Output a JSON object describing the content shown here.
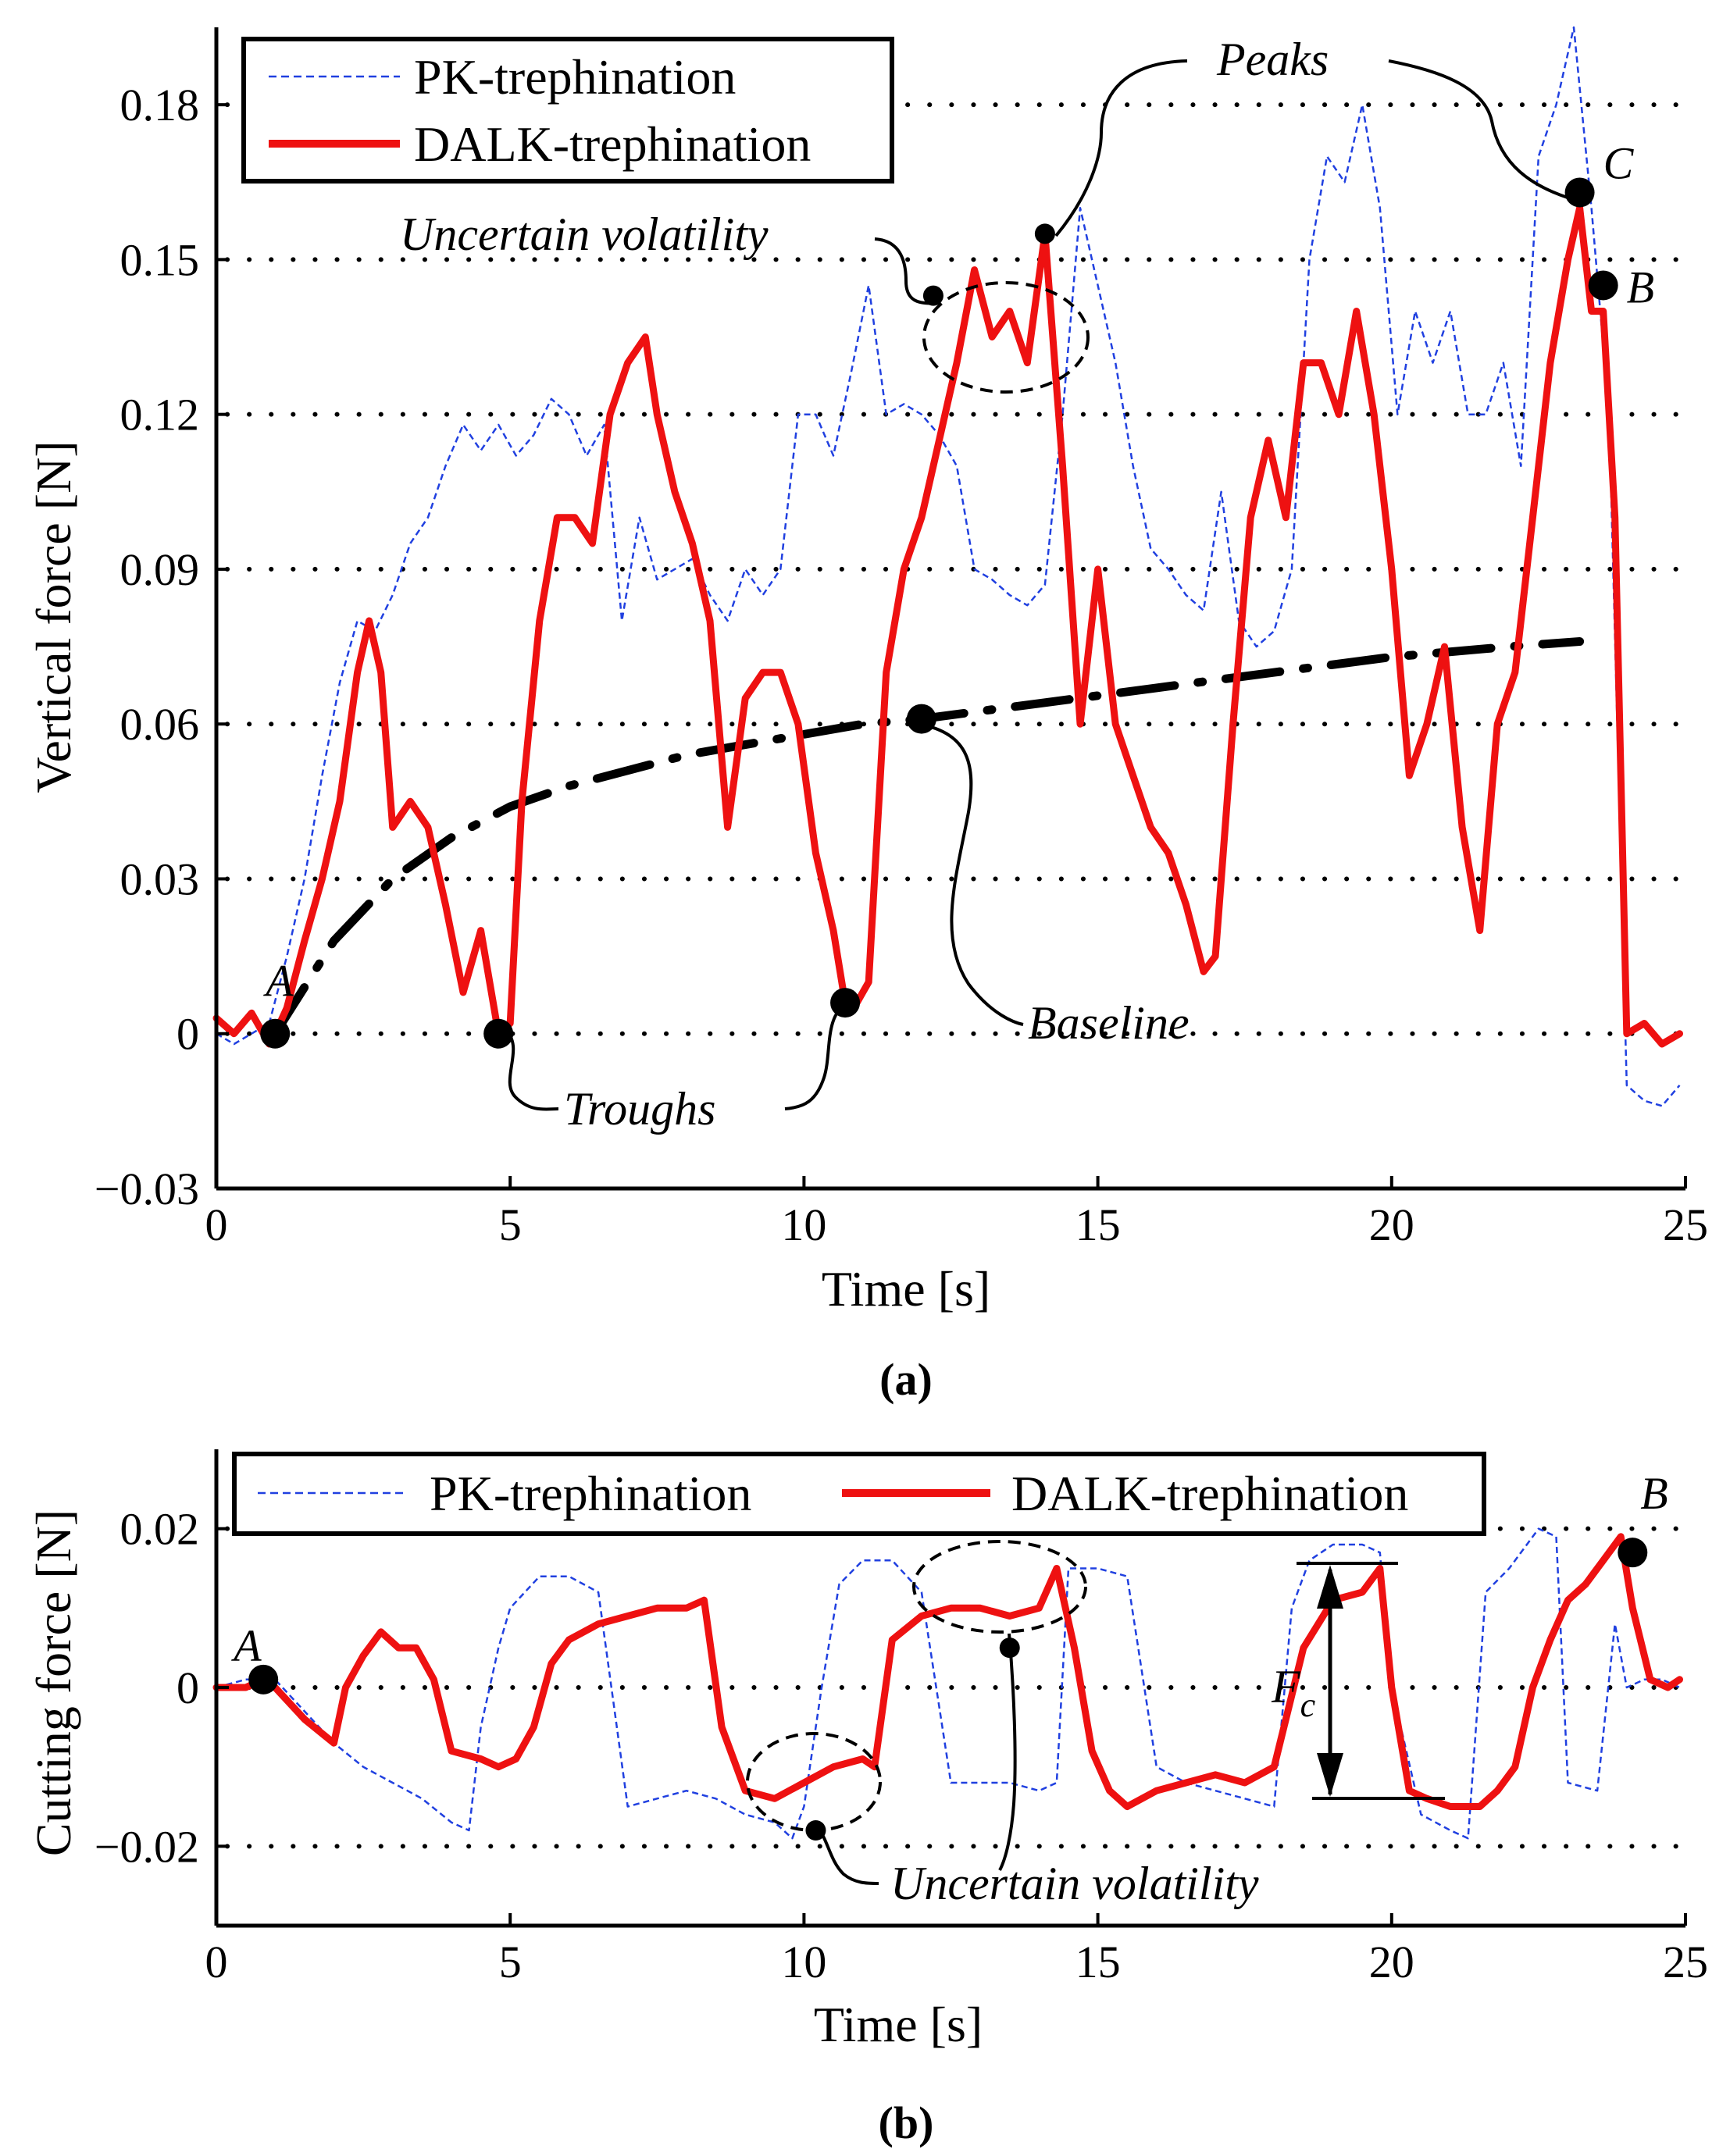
{
  "chart_data": [
    {
      "type": "line",
      "panel_label": "(a)",
      "xlabel": "Time [s]",
      "ylabel": "Vertical force [N]",
      "xlim": [
        0,
        25
      ],
      "ylim": [
        -0.03,
        0.195
      ],
      "xticks": [
        "0",
        "5",
        "10",
        "15",
        "20",
        "25"
      ],
      "yticks": [
        "−0.03",
        "0",
        "0.03",
        "0.06",
        "0.09",
        "0.12",
        "0.15",
        "0.18"
      ],
      "ytick_values": [
        -0.03,
        0,
        0.03,
        0.06,
        0.09,
        0.12,
        0.15,
        0.18
      ],
      "grid": "horizontal dotted lines at y ticks",
      "legend_position": "top-left",
      "series": [
        {
          "name": "PK-trephination",
          "style": "thin dashed",
          "color": "#2040e0",
          "x": [
            0,
            0.3,
            0.6,
            0.9,
            1.2,
            1.5,
            1.8,
            2.1,
            2.4,
            2.7,
            3.0,
            3.3,
            3.6,
            3.9,
            4.2,
            4.5,
            4.8,
            5.1,
            5.4,
            5.7,
            6.0,
            6.3,
            6.6,
            6.9,
            7.2,
            7.5,
            7.8,
            8.1,
            8.4,
            8.7,
            9.0,
            9.3,
            9.6,
            9.9,
            10.2,
            10.5,
            10.8,
            11.1,
            11.4,
            11.7,
            12.0,
            12.3,
            12.6,
            12.9,
            13.2,
            13.5,
            13.8,
            14.1,
            14.4,
            14.7,
            15.0,
            15.3,
            15.6,
            15.9,
            16.2,
            16.5,
            16.8,
            17.1,
            17.4,
            17.7,
            18.0,
            18.3,
            18.6,
            18.9,
            19.2,
            19.5,
            19.8,
            20.1,
            20.4,
            20.7,
            21.0,
            21.3,
            21.6,
            21.9,
            22.2,
            22.5,
            22.8,
            23.1,
            23.4,
            23.7,
            24.0,
            24.3,
            24.6,
            24.9
          ],
          "y": [
            0.0,
            -0.002,
            0.0,
            0.002,
            0.015,
            0.03,
            0.05,
            0.068,
            0.08,
            0.078,
            0.085,
            0.095,
            0.1,
            0.11,
            0.118,
            0.113,
            0.118,
            0.112,
            0.116,
            0.123,
            0.12,
            0.112,
            0.118,
            0.08,
            0.1,
            0.088,
            0.09,
            0.092,
            0.085,
            0.08,
            0.09,
            0.085,
            0.09,
            0.12,
            0.12,
            0.112,
            0.128,
            0.145,
            0.12,
            0.122,
            0.12,
            0.116,
            0.11,
            0.09,
            0.088,
            0.085,
            0.083,
            0.087,
            0.12,
            0.16,
            0.145,
            0.13,
            0.11,
            0.094,
            0.09,
            0.085,
            0.082,
            0.105,
            0.08,
            0.075,
            0.078,
            0.09,
            0.15,
            0.17,
            0.165,
            0.18,
            0.16,
            0.12,
            0.14,
            0.13,
            0.14,
            0.12,
            0.12,
            0.13,
            0.11,
            0.17,
            0.18,
            0.195,
            0.16,
            0.12,
            -0.01,
            -0.013,
            -0.014,
            -0.01
          ]
        },
        {
          "name": "DALK-trephination",
          "style": "thick solid",
          "color": "#ee1111",
          "x": [
            0,
            0.3,
            0.6,
            0.9,
            1.0,
            1.2,
            1.5,
            1.8,
            2.1,
            2.4,
            2.6,
            2.8,
            3.0,
            3.3,
            3.6,
            3.9,
            4.2,
            4.5,
            4.8,
            5.0,
            5.2,
            5.5,
            5.8,
            6.1,
            6.4,
            6.7,
            7.0,
            7.3,
            7.5,
            7.8,
            8.1,
            8.4,
            8.7,
            9.0,
            9.3,
            9.6,
            9.9,
            10.2,
            10.5,
            10.7,
            10.9,
            11.1,
            11.4,
            11.7,
            12.0,
            12.3,
            12.6,
            12.9,
            13.2,
            13.5,
            13.8,
            14.1,
            14.4,
            14.7,
            15.0,
            15.3,
            15.6,
            15.9,
            16.2,
            16.5,
            16.8,
            17.0,
            17.3,
            17.6,
            17.9,
            18.2,
            18.5,
            18.8,
            19.1,
            19.4,
            19.7,
            20.0,
            20.3,
            20.6,
            20.9,
            21.2,
            21.5,
            21.8,
            22.1,
            22.4,
            22.7,
            23.0,
            23.2,
            23.4,
            23.6,
            23.8,
            24.0,
            24.3,
            24.6,
            24.9
          ],
          "y": [
            0.003,
            0.0,
            0.004,
            -0.002,
            0.0,
            0.005,
            0.018,
            0.03,
            0.045,
            0.07,
            0.08,
            0.07,
            0.04,
            0.045,
            0.04,
            0.025,
            0.008,
            0.02,
            0.0,
            0.002,
            0.045,
            0.08,
            0.1,
            0.1,
            0.095,
            0.12,
            0.13,
            0.135,
            0.12,
            0.105,
            0.095,
            0.08,
            0.04,
            0.065,
            0.07,
            0.07,
            0.06,
            0.035,
            0.02,
            0.006,
            0.006,
            0.01,
            0.07,
            0.09,
            0.1,
            0.115,
            0.13,
            0.148,
            0.135,
            0.14,
            0.13,
            0.155,
            0.11,
            0.06,
            0.09,
            0.06,
            0.05,
            0.04,
            0.035,
            0.025,
            0.012,
            0.015,
            0.06,
            0.1,
            0.115,
            0.1,
            0.13,
            0.13,
            0.12,
            0.14,
            0.12,
            0.09,
            0.05,
            0.06,
            0.075,
            0.04,
            0.02,
            0.06,
            0.07,
            0.1,
            0.13,
            0.15,
            0.16,
            0.14,
            0.14,
            0.1,
            0.0,
            0.002,
            -0.002,
            0.0
          ]
        },
        {
          "name": "",
          "style": "dash-dot baseline",
          "color": "#000000",
          "x": [
            1.0,
            2.0,
            3.0,
            4.0,
            5.0,
            6.0,
            7.0,
            8.0,
            9.0,
            10.0,
            11.0,
            12.0,
            14.0,
            16.0,
            18.0,
            20.0,
            22.0,
            23.2
          ],
          "y": [
            0.0,
            0.018,
            0.03,
            0.038,
            0.044,
            0.048,
            0.051,
            0.054,
            0.056,
            0.058,
            0.06,
            0.061,
            0.064,
            0.067,
            0.07,
            0.073,
            0.075,
            0.076
          ]
        }
      ],
      "points": [
        {
          "label": "A",
          "x": 1.0,
          "y": 0.0
        },
        {
          "label": "",
          "x": 4.8,
          "y": 0.0
        },
        {
          "label": "",
          "x": 10.7,
          "y": 0.006
        },
        {
          "label": "",
          "x": 12.0,
          "y": 0.061
        },
        {
          "label": "",
          "x": 14.1,
          "y": 0.155
        },
        {
          "label": "C",
          "x": 23.2,
          "y": 0.163
        },
        {
          "label": "B",
          "x": 23.6,
          "y": 0.145
        },
        {
          "label": "",
          "x": 12.2,
          "y": 0.143
        }
      ],
      "annotations": [
        "Peaks",
        "Uncertain volatility",
        "Troughs",
        "Baseline"
      ]
    },
    {
      "type": "line",
      "panel_label": "(b)",
      "xlabel": "Time [s]",
      "ylabel": "Cutting force [N]",
      "xlim": [
        0,
        25
      ],
      "ylim": [
        -0.03,
        0.03
      ],
      "xticks": [
        "0",
        "5",
        "10",
        "15",
        "20",
        "25"
      ],
      "yticks": [
        "−0.02",
        "0",
        "0.02"
      ],
      "ytick_values": [
        -0.02,
        0,
        0.02
      ],
      "grid": "horizontal dotted lines at y ticks",
      "legend_position": "top",
      "series": [
        {
          "name": "PK-trephination",
          "style": "thin dashed",
          "color": "#2040e0",
          "x": [
            0,
            0.5,
            1.0,
            1.5,
            2.0,
            2.5,
            3.0,
            3.5,
            4.0,
            4.3,
            4.5,
            4.8,
            5.0,
            5.5,
            6.0,
            6.5,
            7.0,
            7.5,
            8.0,
            8.5,
            9.0,
            9.5,
            9.8,
            10.0,
            10.3,
            10.6,
            11.0,
            11.5,
            12.0,
            12.5,
            13.0,
            13.5,
            14.0,
            14.3,
            14.5,
            15.0,
            15.5,
            16.0,
            16.5,
            17.0,
            17.5,
            18.0,
            18.3,
            18.6,
            19.0,
            19.5,
            19.8,
            20.0,
            20.5,
            21.0,
            21.3,
            21.6,
            22.0,
            22.5,
            22.8,
            23.0,
            23.5,
            23.8,
            24.0,
            24.3,
            24.6,
            24.9
          ],
          "y": [
            0.0,
            0.001,
            0.001,
            -0.003,
            -0.007,
            -0.01,
            -0.012,
            -0.014,
            -0.017,
            -0.018,
            -0.005,
            0.005,
            0.01,
            0.014,
            0.014,
            0.012,
            -0.015,
            -0.014,
            -0.013,
            -0.014,
            -0.016,
            -0.017,
            -0.019,
            -0.015,
            0.0,
            0.013,
            0.016,
            0.016,
            0.012,
            -0.012,
            -0.012,
            -0.012,
            -0.013,
            -0.012,
            0.015,
            0.015,
            0.014,
            -0.01,
            -0.012,
            -0.013,
            -0.014,
            -0.015,
            0.01,
            0.016,
            0.018,
            0.018,
            0.017,
            0.0,
            -0.016,
            -0.018,
            -0.019,
            0.012,
            0.015,
            0.02,
            0.019,
            -0.012,
            -0.013,
            0.008,
            0.0,
            0.001,
            0.001,
            0.0
          ]
        },
        {
          "name": "DALK-trephination",
          "style": "thick solid",
          "color": "#ee1111",
          "x": [
            0,
            0.5,
            0.8,
            1.0,
            1.5,
            2.0,
            2.2,
            2.5,
            2.8,
            3.1,
            3.4,
            3.7,
            4.0,
            4.5,
            4.8,
            5.1,
            5.4,
            5.7,
            6.0,
            6.5,
            7.0,
            7.5,
            8.0,
            8.3,
            8.6,
            9.0,
            9.5,
            10.0,
            10.5,
            11.0,
            11.2,
            11.5,
            12.0,
            12.5,
            13.0,
            13.5,
            14.0,
            14.3,
            14.6,
            14.9,
            15.2,
            15.5,
            16.0,
            16.5,
            17.0,
            17.5,
            18.0,
            18.5,
            19.0,
            19.5,
            19.8,
            20.0,
            20.3,
            20.6,
            21.0,
            21.5,
            21.8,
            22.1,
            22.4,
            22.7,
            23.0,
            23.3,
            23.6,
            23.9,
            24.1,
            24.4,
            24.7,
            24.9
          ],
          "y": [
            0.0,
            0.0,
            0.001,
            0.0,
            -0.004,
            -0.007,
            0.0,
            0.004,
            0.007,
            0.005,
            0.005,
            0.001,
            -0.008,
            -0.009,
            -0.01,
            -0.009,
            -0.005,
            0.003,
            0.006,
            0.008,
            0.009,
            0.01,
            0.01,
            0.011,
            -0.005,
            -0.013,
            -0.014,
            -0.012,
            -0.01,
            -0.009,
            -0.01,
            0.006,
            0.009,
            0.01,
            0.01,
            0.009,
            0.01,
            0.015,
            0.005,
            -0.008,
            -0.013,
            -0.015,
            -0.013,
            -0.012,
            -0.011,
            -0.012,
            -0.01,
            0.005,
            0.011,
            0.012,
            0.015,
            0.0,
            -0.013,
            -0.014,
            -0.015,
            -0.015,
            -0.013,
            -0.01,
            0.0,
            0.006,
            0.011,
            0.013,
            0.016,
            0.019,
            0.01,
            0.001,
            0.0,
            0.001
          ]
        }
      ],
      "points": [
        {
          "label": "A",
          "x": 0.8,
          "y": 0.001
        },
        {
          "label": "B",
          "x": 24.1,
          "y": 0.017
        },
        {
          "label": "",
          "x": 10.2,
          "y": -0.018
        },
        {
          "label": "",
          "x": 13.5,
          "y": 0.005
        }
      ],
      "annotations": [
        "Uncertain volatility",
        "F",
        "c"
      ]
    }
  ]
}
